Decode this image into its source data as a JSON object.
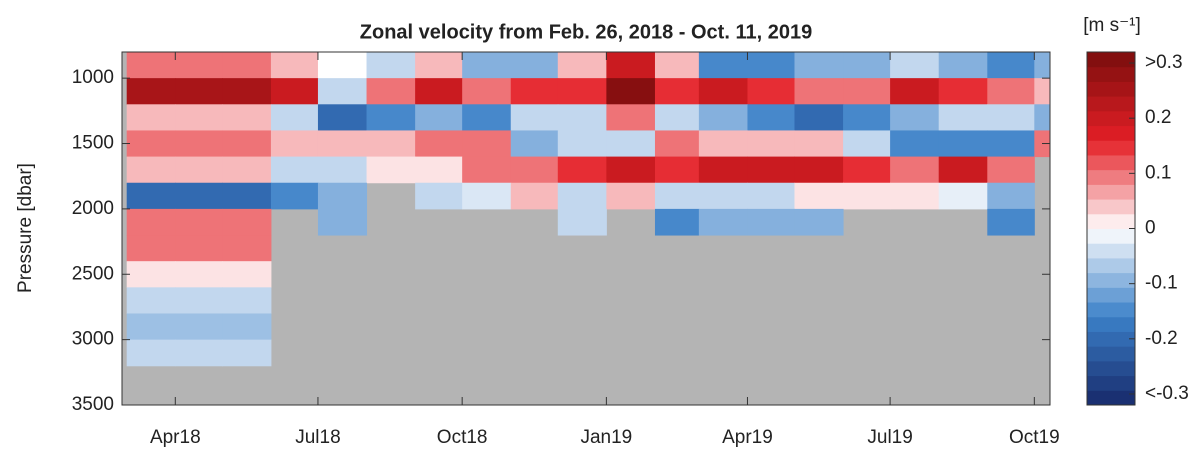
{
  "chart_data": {
    "type": "heatmap",
    "title": "Zonal velocity from Feb. 26, 2018 - Oct. 11, 2019",
    "ylabel": "Pressure [dbar]",
    "colorbar_label": "[m s⁻¹]",
    "x": [
      "2018-03",
      "2018-04",
      "2018-05",
      "2018-06",
      "2018-07",
      "2018-08",
      "2018-09",
      "2018-10",
      "2018-11",
      "2018-12",
      "2019-01",
      "2019-02",
      "2019-03",
      "2019-04",
      "2019-05",
      "2019-06",
      "2019-07",
      "2019-08",
      "2019-09",
      "2019-10"
    ],
    "y": [
      900,
      1100,
      1300,
      1500,
      1700,
      1900,
      2100,
      2300,
      2500,
      2700,
      2900,
      3100
    ],
    "z": [
      [
        0.1,
        0.1,
        0.1,
        0.05,
        0,
        -0.05,
        0.05,
        -0.1,
        -0.1,
        0.05,
        0.2,
        0.05,
        -0.15,
        -0.15,
        -0.1,
        -0.1,
        -0.05,
        -0.1,
        -0.15,
        -0.1
      ],
      [
        0.25,
        0.25,
        0.25,
        0.2,
        -0.05,
        0.1,
        0.2,
        0.1,
        0.15,
        0.15,
        0.3,
        0.15,
        0.2,
        0.15,
        0.1,
        0.1,
        0.2,
        0.15,
        0.1,
        0.05
      ],
      [
        0.05,
        0.05,
        0.05,
        -0.05,
        -0.2,
        -0.15,
        -0.1,
        -0.15,
        -0.05,
        -0.05,
        0.1,
        -0.05,
        -0.1,
        -0.15,
        -0.2,
        -0.15,
        -0.1,
        -0.05,
        -0.05,
        -0.1
      ],
      [
        0.1,
        0.1,
        0.1,
        0.05,
        0.05,
        0.05,
        0.1,
        0.1,
        -0.1,
        -0.05,
        -0.05,
        0.1,
        0.05,
        0.05,
        0.05,
        -0.05,
        -0.15,
        -0.15,
        -0.15,
        0.1
      ],
      [
        0.05,
        0.05,
        0.05,
        -0.05,
        -0.05,
        0.02,
        0.02,
        0.1,
        0.1,
        0.15,
        0.2,
        0.15,
        0.2,
        0.2,
        0.2,
        0.15,
        0.1,
        0.2,
        0.1,
        null
      ],
      [
        -0.2,
        -0.2,
        -0.2,
        -0.15,
        -0.1,
        null,
        -0.05,
        -0.03,
        0.05,
        -0.05,
        0.05,
        -0.05,
        -0.05,
        -0.05,
        0.02,
        0.02,
        0.02,
        -0.02,
        -0.1,
        null
      ],
      [
        0.1,
        0.1,
        0.1,
        null,
        -0.1,
        null,
        null,
        null,
        null,
        -0.05,
        null,
        -0.15,
        -0.1,
        -0.1,
        -0.1,
        null,
        null,
        null,
        -0.15,
        null
      ],
      [
        0.1,
        0.1,
        0.1,
        null,
        null,
        null,
        null,
        null,
        null,
        null,
        null,
        null,
        null,
        null,
        null,
        null,
        null,
        null,
        null,
        null
      ],
      [
        0.02,
        0.02,
        0.02,
        null,
        null,
        null,
        null,
        null,
        null,
        null,
        null,
        null,
        null,
        null,
        null,
        null,
        null,
        null,
        null,
        null
      ],
      [
        -0.05,
        -0.05,
        -0.05,
        null,
        null,
        null,
        null,
        null,
        null,
        null,
        null,
        null,
        null,
        null,
        null,
        null,
        null,
        null,
        null,
        null
      ],
      [
        -0.08,
        -0.08,
        -0.08,
        null,
        null,
        null,
        null,
        null,
        null,
        null,
        null,
        null,
        null,
        null,
        null,
        null,
        null,
        null,
        null,
        null
      ],
      [
        -0.05,
        -0.05,
        -0.05,
        null,
        null,
        null,
        null,
        null,
        null,
        null,
        null,
        null,
        null,
        null,
        null,
        null,
        null,
        null,
        null,
        null
      ]
    ],
    "xlim": [
      "2018-02-26",
      "2019-10-11"
    ],
    "xticks": [
      {
        "value": "2018-04-01",
        "label": "Apr18"
      },
      {
        "value": "2018-07-01",
        "label": "Jul18"
      },
      {
        "value": "2018-10-01",
        "label": "Oct18"
      },
      {
        "value": "2019-01-01",
        "label": "Jan19"
      },
      {
        "value": "2019-04-01",
        "label": "Apr19"
      },
      {
        "value": "2019-07-01",
        "label": "Jul19"
      },
      {
        "value": "2019-10-01",
        "label": "Oct19"
      }
    ],
    "ylim": [
      800,
      3500
    ],
    "yticks": [
      1000,
      1500,
      2000,
      2500,
      3000,
      3500
    ],
    "y_reversed": true,
    "colorbar_lim": [
      -0.32,
      0.32
    ],
    "colorbar_ticks": [
      {
        "value": 0.3,
        "label": ">0.3"
      },
      0.2,
      0.1,
      0,
      -0.1,
      -0.2,
      {
        "value": -0.3,
        "label": "<-0.3"
      }
    ],
    "colormap": [
      "#17296a",
      "#3b80c8",
      "#ffffff",
      "#e41f26",
      "#7a0d0d"
    ],
    "nodata_color": "#b4b4b4"
  }
}
